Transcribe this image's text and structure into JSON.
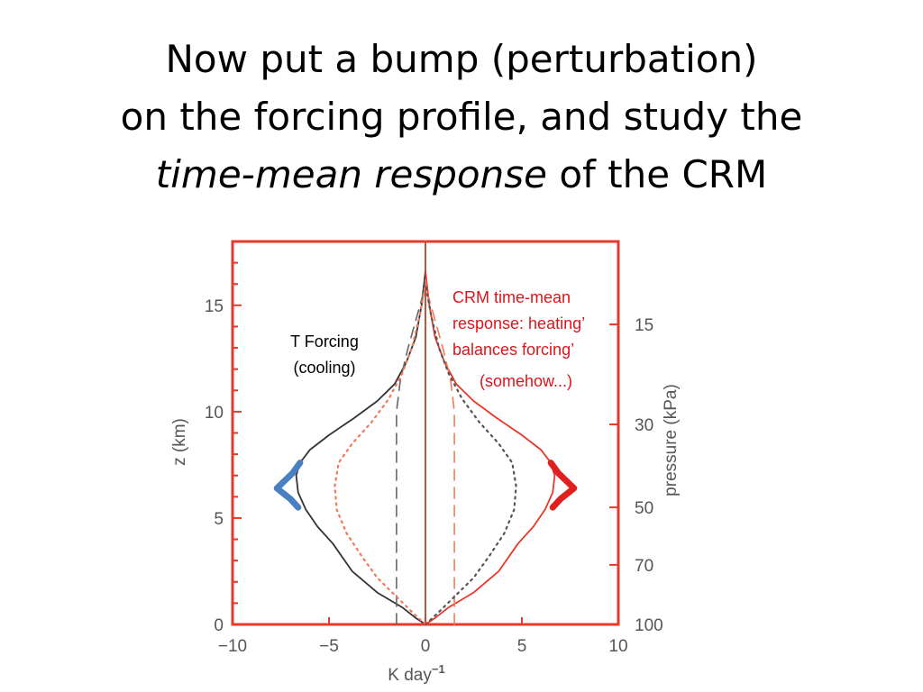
{
  "title": {
    "line1": "Now put a bump (perturbation)",
    "line2": "on the forcing profile, and study the",
    "line3_italic": "time-mean response",
    "line3_rest": " of the CRM"
  },
  "chart_data": {
    "type": "line",
    "xlim": [
      -10,
      10
    ],
    "ylim": [
      0,
      18
    ],
    "x_ticks": [
      "−10",
      "−5",
      "0",
      "5",
      "10"
    ],
    "x_tick_values": [
      -10,
      -5,
      0,
      5,
      10
    ],
    "y_ticks": [
      "0",
      "5",
      "10",
      "15"
    ],
    "y_tick_values": [
      0,
      5,
      10,
      15
    ],
    "xlabel": "K  day",
    "xlabel_sup": "−1",
    "ylabel": "z  (km)",
    "right_axis": {
      "label": "pressure  (kPa)",
      "ticks": [
        {
          "label": "100",
          "z": 0
        },
        {
          "label": "70",
          "z": 2.8
        },
        {
          "label": "50",
          "z": 5.5
        },
        {
          "label": "30",
          "z": 9.4
        },
        {
          "label": "15",
          "z": 14.1
        }
      ]
    },
    "series": [
      {
        "key": "cooling_forcing",
        "style": "solid",
        "color": "#333333",
        "points": [
          [
            0,
            0
          ],
          [
            -0.5,
            0.3
          ],
          [
            -1.2,
            0.8
          ],
          [
            -2.5,
            1.5
          ],
          [
            -3.8,
            2.5
          ],
          [
            -4.8,
            3.8
          ],
          [
            -5.6,
            4.6
          ],
          [
            -6.2,
            5.4
          ],
          [
            -6.6,
            6.2
          ],
          [
            -6.7,
            7
          ],
          [
            -6.5,
            7.6
          ],
          [
            -6,
            8.2
          ],
          [
            -5,
            8.9
          ],
          [
            -3.7,
            9.7
          ],
          [
            -2.5,
            10.5
          ],
          [
            -1.6,
            11.3
          ],
          [
            -1,
            12.3
          ],
          [
            -0.5,
            13.5
          ],
          [
            -0.2,
            15
          ],
          [
            0,
            16.6
          ]
        ]
      },
      {
        "key": "cooling_perturbation",
        "style": "dashed",
        "color": "#666666",
        "points": [
          [
            -1.5,
            0
          ],
          [
            -1.5,
            10
          ],
          [
            -1.3,
            11.5
          ],
          [
            -0.9,
            13
          ],
          [
            -0.5,
            14.3
          ],
          [
            -0.1,
            15.6
          ],
          [
            0,
            16.2
          ]
        ]
      },
      {
        "key": "cooling_response",
        "style": "dotted",
        "color": "#f07a5a",
        "points": [
          [
            0,
            0
          ],
          [
            -0.6,
            0.5
          ],
          [
            -1.5,
            1.3
          ],
          [
            -2.5,
            2.2
          ],
          [
            -3.3,
            3.2
          ],
          [
            -4.1,
            4.3
          ],
          [
            -4.6,
            5.4
          ],
          [
            -4.7,
            6.5
          ],
          [
            -4.5,
            7.6
          ],
          [
            -3.8,
            8.5
          ],
          [
            -2.8,
            9.5
          ],
          [
            -1.9,
            10.6
          ],
          [
            -1.2,
            11.8
          ],
          [
            -0.7,
            13
          ],
          [
            -0.3,
            14.5
          ],
          [
            0,
            16
          ]
        ]
      },
      {
        "key": "heating_response",
        "style": "solid",
        "color": "#e8382a",
        "points": [
          [
            0,
            0
          ],
          [
            0.5,
            0.3
          ],
          [
            1.2,
            0.8
          ],
          [
            2.5,
            1.5
          ],
          [
            3.8,
            2.5
          ],
          [
            4.8,
            3.8
          ],
          [
            5.6,
            4.6
          ],
          [
            6.2,
            5.4
          ],
          [
            6.6,
            6.2
          ],
          [
            6.7,
            7
          ],
          [
            6.5,
            7.6
          ],
          [
            6,
            8.2
          ],
          [
            5,
            8.9
          ],
          [
            3.7,
            9.7
          ],
          [
            2.5,
            10.5
          ],
          [
            1.6,
            11.3
          ],
          [
            1,
            12.3
          ],
          [
            0.5,
            13.5
          ],
          [
            0.2,
            15
          ],
          [
            0,
            16.6
          ]
        ]
      },
      {
        "key": "heating_perturbation",
        "style": "dashed",
        "color": "#f07a5a",
        "points": [
          [
            1.5,
            0
          ],
          [
            1.5,
            10
          ],
          [
            1.3,
            11.5
          ],
          [
            0.9,
            13
          ],
          [
            0.5,
            14.3
          ],
          [
            0.1,
            15.6
          ],
          [
            0,
            16.2
          ]
        ]
      },
      {
        "key": "heating_dotted",
        "style": "dotted",
        "color": "#555555",
        "points": [
          [
            0,
            0
          ],
          [
            0.6,
            0.5
          ],
          [
            1.5,
            1.3
          ],
          [
            2.5,
            2.2
          ],
          [
            3.3,
            3.2
          ],
          [
            4.1,
            4.3
          ],
          [
            4.6,
            5.4
          ],
          [
            4.7,
            6.5
          ],
          [
            4.5,
            7.6
          ],
          [
            3.8,
            8.5
          ],
          [
            2.8,
            9.5
          ],
          [
            1.9,
            10.6
          ],
          [
            1.2,
            11.8
          ],
          [
            0.7,
            13
          ],
          [
            0.3,
            14.5
          ],
          [
            0,
            16
          ]
        ]
      },
      {
        "key": "cooling_bump",
        "style": "bump",
        "color": "#4a7fc1",
        "points": [
          [
            -6.5,
            7.6
          ],
          [
            -6.9,
            7.1
          ],
          [
            -7.7,
            6.4
          ],
          [
            -7.0,
            5.9
          ],
          [
            -6.6,
            5.5
          ]
        ]
      },
      {
        "key": "heating_bump",
        "style": "bump",
        "color": "#e01f1f",
        "points": [
          [
            6.5,
            7.6
          ],
          [
            6.9,
            7.1
          ],
          [
            7.7,
            6.4
          ],
          [
            7.0,
            5.9
          ],
          [
            6.6,
            5.5
          ]
        ]
      }
    ],
    "annotations": {
      "left": [
        "T Forcing",
        "(cooling)"
      ],
      "right": [
        "CRM time-mean",
        "response: heating’",
        "balances forcing’",
        "(somehow...)"
      ]
    },
    "colors": {
      "frame": "#e8382a",
      "zero_line": "#b85a3a",
      "axis_text": "#555555"
    }
  }
}
